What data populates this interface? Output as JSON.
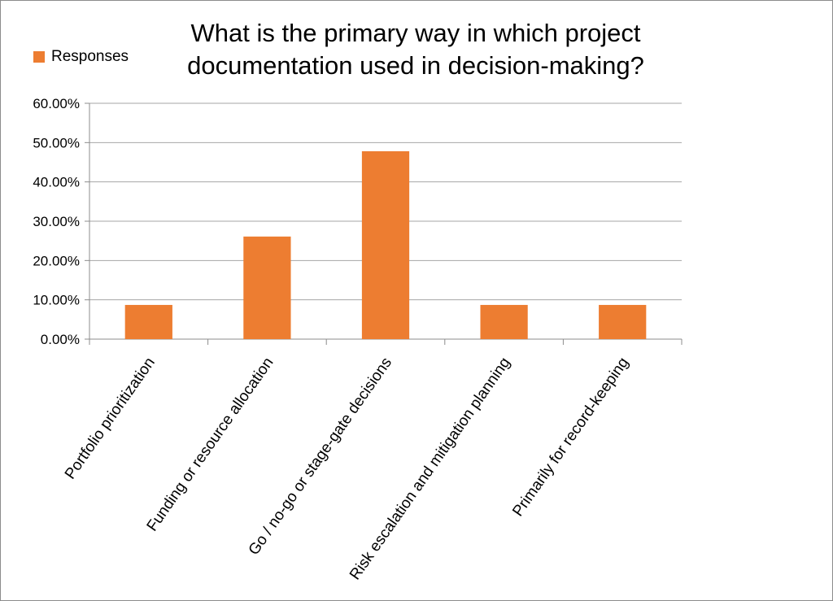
{
  "chart_data": {
    "type": "bar",
    "title_lines": [
      "What is the primary way in which project",
      "documentation used in decision-making?"
    ],
    "categories": [
      "Portfolio prioritization",
      "Funding or resource allocation",
      "Go / no-go or stage-gate decisions",
      "Risk escalation and mitigation planning",
      "Primarily for record-keeping"
    ],
    "series": [
      {
        "name": "Responses",
        "values": [
          0.087,
          0.261,
          0.478,
          0.087,
          0.087
        ]
      }
    ],
    "ylim": [
      0,
      0.6
    ],
    "yticks": [
      0,
      0.1,
      0.2,
      0.3,
      0.4,
      0.5,
      0.6
    ],
    "ytick_labels": [
      "0.00%",
      "10.00%",
      "20.00%",
      "30.00%",
      "40.00%",
      "50.00%",
      "60.00%"
    ],
    "grid": true,
    "legend_position": "top-left",
    "bar_color": "#ED7D31",
    "grid_color": "#a6a6a6",
    "axis_color": "#8c8c8c"
  }
}
